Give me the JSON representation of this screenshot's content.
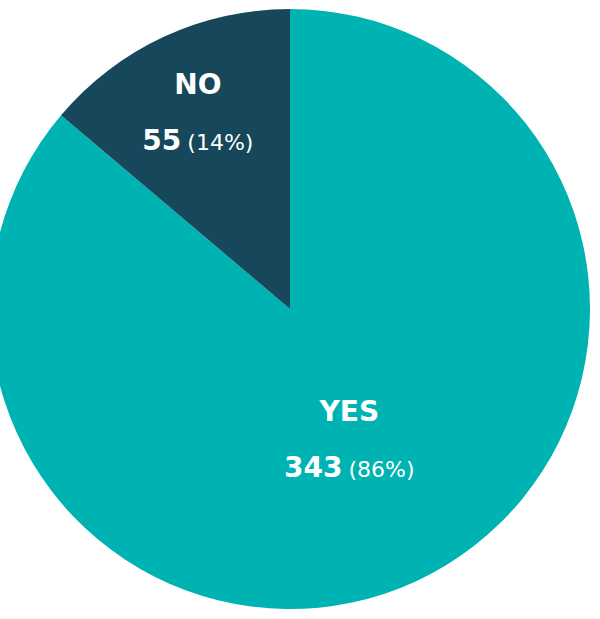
{
  "chart_data": {
    "type": "pie",
    "categories": [
      "YES",
      "NO"
    ],
    "values": [
      343,
      55
    ],
    "percentages": [
      86,
      14
    ],
    "percentage_labels": [
      "(86%)",
      "(14%)"
    ],
    "colors": [
      "#00b3b3",
      "#17475a"
    ],
    "data_labels": true
  }
}
